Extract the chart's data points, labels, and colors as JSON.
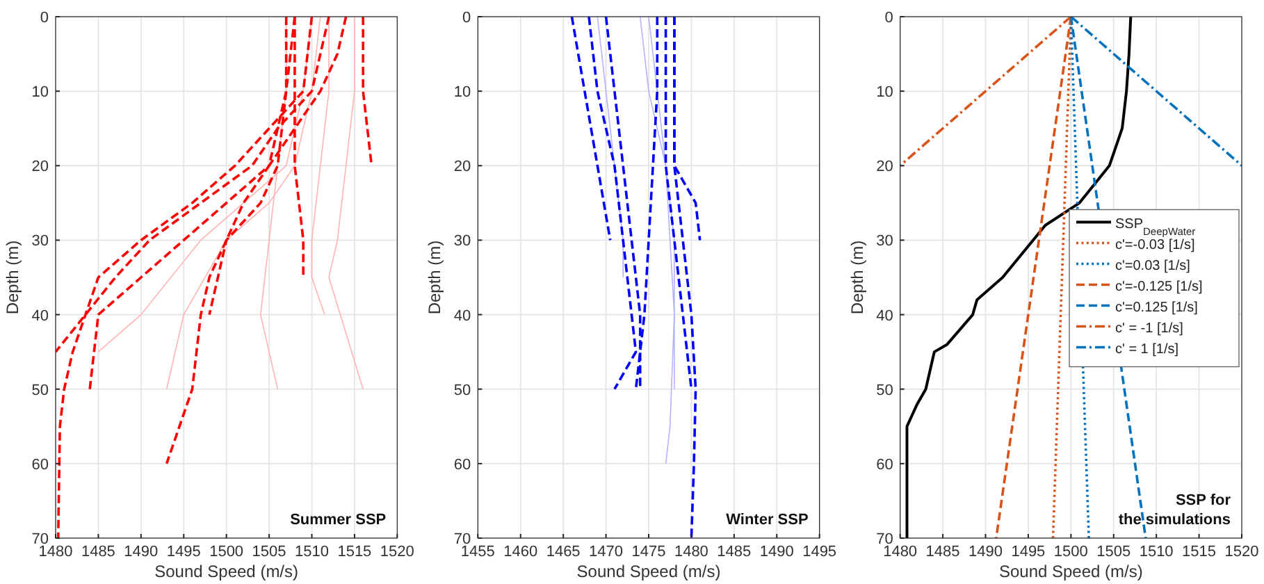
{
  "chart_data": [
    {
      "type": "line",
      "xlabel": "Sound Speed (m/s)",
      "ylabel": "Depth (m)",
      "xlim": [
        1480,
        1520
      ],
      "xticks": [
        1480,
        1485,
        1490,
        1495,
        1500,
        1505,
        1510,
        1515,
        1520
      ],
      "ylim": [
        70,
        0
      ],
      "yticks": [
        0,
        10,
        20,
        30,
        40,
        50,
        60,
        70
      ],
      "grid": true,
      "annotations": [
        "Summer SSP"
      ],
      "series": [
        {
          "color": "#ffb3b3",
          "line_style": "solid",
          "x": [
            1515,
            1515,
            1514,
            1513,
            1512,
            1516
          ],
          "values": [
            0,
            10,
            20,
            30,
            35,
            50
          ]
        },
        {
          "color": "#ffb3b3",
          "line_style": "solid",
          "x": [
            1507,
            1507,
            1506,
            1505,
            1504,
            1506
          ],
          "values": [
            0,
            10,
            20,
            30,
            40,
            50
          ]
        },
        {
          "color": "#ffb3b3",
          "line_style": "solid",
          "x": [
            1510,
            1509,
            1507,
            1502,
            1497,
            1490,
            1485
          ],
          "values": [
            0,
            10,
            20,
            25,
            30,
            40,
            45
          ]
        },
        {
          "color": "#ffb3b3",
          "line_style": "solid",
          "x": [
            1511,
            1510,
            1508,
            1505,
            1500,
            1495,
            1493
          ],
          "values": [
            0,
            10,
            20,
            25,
            30,
            40,
            50
          ]
        },
        {
          "color": "#ffb3b3",
          "line_style": "solid",
          "x": [
            1512,
            1512,
            1511,
            1510,
            1510,
            1511.5
          ],
          "values": [
            0,
            10,
            20,
            30,
            35,
            40
          ]
        },
        {
          "color": "#ff0000",
          "line_style": "dashed",
          "x": [
            1512,
            1510,
            1506,
            1503,
            1497,
            1491,
            1487,
            1480
          ],
          "values": [
            0,
            10,
            15,
            20,
            25,
            30,
            35,
            45
          ]
        },
        {
          "color": "#ff0000",
          "line_style": "dashed",
          "x": [
            1510,
            1509,
            1505,
            1501,
            1496,
            1490,
            1485,
            1482,
            1481,
            1480.5,
            1480.3
          ],
          "values": [
            0,
            10,
            15,
            20,
            25,
            30,
            35,
            45,
            50,
            55,
            70
          ]
        },
        {
          "color": "#ff0000",
          "line_style": "dashed",
          "x": [
            1508,
            1507,
            1505,
            1502,
            1500,
            1498,
            1497,
            1496,
            1493
          ],
          "values": [
            0,
            10,
            20,
            25,
            30,
            35,
            40,
            50,
            60
          ]
        },
        {
          "color": "#ff0000",
          "line_style": "dashed",
          "x": [
            1508,
            1508,
            1508,
            1508.5,
            1509,
            1509
          ],
          "values": [
            0,
            10,
            20,
            25,
            30,
            35
          ]
        },
        {
          "color": "#ff0000",
          "line_style": "dashed",
          "x": [
            1516,
            1516,
            1516.5,
            1517
          ],
          "values": [
            0,
            10,
            15,
            20
          ]
        },
        {
          "color": "#ff0000",
          "line_style": "dashed",
          "x": [
            1514,
            1513,
            1511,
            1508,
            1505,
            1500,
            1495,
            1490,
            1485,
            1484
          ],
          "values": [
            0,
            5,
            10,
            15,
            20,
            25,
            30,
            35,
            40,
            50
          ]
        },
        {
          "color": "#ff0000",
          "line_style": "dashed",
          "x": [
            1507,
            1507,
            1506.5,
            1506,
            1504,
            1500,
            1498
          ],
          "values": [
            0,
            10,
            15,
            20,
            25,
            30,
            40
          ]
        }
      ]
    },
    {
      "type": "line",
      "xlabel": "Sound Speed (m/s)",
      "ylabel": "Depth (m)",
      "xlim": [
        1455,
        1495
      ],
      "xticks": [
        1455,
        1460,
        1465,
        1470,
        1475,
        1480,
        1485,
        1490,
        1495
      ],
      "ylim": [
        70,
        0
      ],
      "yticks": [
        0,
        10,
        20,
        30,
        40,
        50,
        60,
        70
      ],
      "grid": true,
      "annotations": [
        "Winter SSP"
      ],
      "series": [
        {
          "color": "#b3b3ff",
          "line_style": "solid",
          "x": [
            1474,
            1475,
            1477,
            1478,
            1477.5,
            1477
          ],
          "values": [
            0,
            10,
            20,
            40,
            55,
            60
          ]
        },
        {
          "color": "#b3b3ff",
          "line_style": "solid",
          "x": [
            1469,
            1470,
            1471,
            1472,
            1472
          ],
          "values": [
            0,
            10,
            20,
            30,
            35
          ]
        },
        {
          "color": "#b3b3ff",
          "line_style": "solid",
          "x": [
            1475,
            1476,
            1477,
            1478,
            1478
          ],
          "values": [
            0,
            10,
            20,
            30,
            50
          ]
        },
        {
          "color": "#0000ff",
          "line_style": "dashed",
          "x": [
            1466,
            1467.5,
            1469,
            1470.5
          ],
          "values": [
            0,
            10,
            20,
            30
          ]
        },
        {
          "color": "#0000ff",
          "line_style": "dashed",
          "x": [
            1478,
            1478,
            1478,
            1479,
            1480,
            1480.5,
            1480.3,
            1480
          ],
          "values": [
            0,
            10,
            20,
            30,
            40,
            50,
            60,
            70
          ]
        },
        {
          "color": "#0000ff",
          "line_style": "dashed",
          "x": [
            1478,
            1478,
            1478,
            1479,
            1480.5,
            1481
          ],
          "values": [
            0,
            10,
            20,
            22,
            25,
            30
          ]
        },
        {
          "color": "#0000ff",
          "line_style": "dashed",
          "x": [
            1468,
            1469,
            1471,
            1472,
            1473,
            1473.5,
            1471
          ],
          "values": [
            0,
            10,
            20,
            30,
            40,
            45,
            50
          ]
        },
        {
          "color": "#0000ff",
          "line_style": "dashed",
          "x": [
            1476,
            1476,
            1475.5,
            1475,
            1474.5,
            1474,
            1473.5
          ],
          "values": [
            0,
            10,
            20,
            30,
            40,
            45,
            50
          ]
        },
        {
          "color": "#0000ff",
          "line_style": "dashed",
          "x": [
            1470,
            1471,
            1472,
            1473,
            1474,
            1474,
            1474
          ],
          "values": [
            0,
            10,
            20,
            30,
            40,
            45,
            50
          ]
        },
        {
          "color": "#0000ff",
          "line_style": "dashed",
          "x": [
            1477,
            1477,
            1477,
            1478,
            1478.5,
            1479,
            1480
          ],
          "values": [
            0,
            10,
            20,
            30,
            35,
            40,
            50
          ]
        }
      ]
    },
    {
      "type": "line",
      "xlabel": "Sound Speed (m/s)",
      "ylabel": "Depth (m)",
      "xlim": [
        1480,
        1520
      ],
      "xticks": [
        1480,
        1485,
        1490,
        1495,
        1500,
        1505,
        1510,
        1515,
        1520
      ],
      "ylim": [
        70,
        0
      ],
      "yticks": [
        0,
        10,
        20,
        30,
        40,
        50,
        60,
        70
      ],
      "grid": true,
      "legend": "right",
      "annotations": [
        "SSP for\nthe simulations"
      ],
      "series": [
        {
          "name": "SSP$_{DeepWater}$",
          "color": "#000000",
          "line_style": "solid",
          "x": [
            1507,
            1506.8,
            1506.5,
            1506,
            1504.5,
            1501,
            1497,
            1492,
            1489,
            1488.5,
            1485.5,
            1484,
            1483,
            1482,
            1480.8,
            1480.8,
            1480.8
          ],
          "values": [
            0,
            5,
            10,
            15,
            20,
            25,
            28,
            35,
            38,
            40,
            44,
            45,
            50,
            52,
            55,
            60,
            70
          ]
        },
        {
          "name": "c'=-0.03 [1/s]",
          "color": "#d95319",
          "line_style": "dotted",
          "x": [
            1500,
            1497.9
          ],
          "values": [
            0,
            70
          ]
        },
        {
          "name": "c'=0.03 [1/s]",
          "color": "#0072bd",
          "line_style": "dotted",
          "x": [
            1500,
            1502.1
          ],
          "values": [
            0,
            70
          ]
        },
        {
          "name": "c'=-0.125 [1/s]",
          "color": "#d95319",
          "line_style": "dashed",
          "x": [
            1500,
            1491.25
          ],
          "values": [
            0,
            70
          ]
        },
        {
          "name": "c'=0.125 [1/s]",
          "color": "#0072bd",
          "line_style": "dashed",
          "x": [
            1500,
            1508.75
          ],
          "values": [
            0,
            70
          ]
        },
        {
          "name": "c' = -1 [1/s]",
          "color": "#d95319",
          "line_style": "dashdot",
          "x": [
            1500,
            1480
          ],
          "values": [
            0,
            20
          ]
        },
        {
          "name": "c' = 1 [1/s]",
          "color": "#0072bd",
          "line_style": "dashdot",
          "x": [
            1500,
            1520
          ],
          "values": [
            0,
            20
          ]
        }
      ]
    }
  ]
}
